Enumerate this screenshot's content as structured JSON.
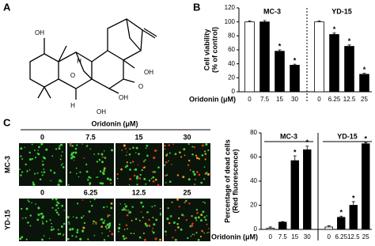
{
  "panels": {
    "a": "A",
    "b": "B",
    "c": "C"
  },
  "structure": {
    "atom_labels": [
      "OH",
      "O",
      "H",
      "OH",
      "O",
      "H",
      "OH",
      "OH"
    ]
  },
  "microscopy": {
    "header": "Oridonin (μM)",
    "rows": [
      {
        "name": "MC-3",
        "columns": [
          "0",
          "7.5",
          "15",
          "30"
        ]
      },
      {
        "name": "YD-15",
        "columns": [
          "0",
          "6.25",
          "12.5",
          "25"
        ]
      }
    ]
  },
  "chart_data": [
    {
      "type": "bar",
      "ylabel": [
        "Cell viability",
        "(% of control)"
      ],
      "xlabel": "Oridonin (μM)",
      "ylim": [
        0,
        120
      ],
      "yticks": [
        0,
        20,
        40,
        60,
        80,
        100,
        120
      ],
      "separator_style": "dashed",
      "groups": [
        {
          "name": "MC-3",
          "categories": [
            "0",
            "7.5",
            "15",
            "30"
          ],
          "values": [
            100,
            100,
            58,
            38
          ],
          "errors": [
            1.5,
            2,
            2,
            1.5
          ],
          "colors": [
            "#ffffff",
            "#000000",
            "#000000",
            "#000000"
          ],
          "significance": [
            null,
            null,
            "*",
            "*"
          ]
        },
        {
          "name": "YD-15",
          "categories": [
            "0",
            "6.25",
            "12.5",
            "25"
          ],
          "values": [
            100,
            82,
            65,
            25
          ],
          "errors": [
            1.5,
            2,
            2,
            1.5
          ],
          "colors": [
            "#ffffff",
            "#000000",
            "#000000",
            "#000000"
          ],
          "significance": [
            null,
            "*",
            "*",
            "*"
          ]
        }
      ]
    },
    {
      "type": "bar",
      "ylabel": [
        "Percentage of dead cells",
        "(Red fluorescence)"
      ],
      "xlabel": "Oridonin (μM)",
      "ylim": [
        0,
        80
      ],
      "yticks": [
        0,
        20,
        40,
        60,
        80
      ],
      "separator_style": "solid",
      "groups": [
        {
          "name": "MC-3",
          "categories": [
            "0",
            "7.5",
            "15",
            "30"
          ],
          "values": [
            1,
            6,
            57,
            66
          ],
          "errors": [
            1,
            0.5,
            4,
            3
          ],
          "colors": [
            "#ffffff",
            "#000000",
            "#000000",
            "#000000"
          ],
          "significance": [
            null,
            null,
            "*",
            "*"
          ]
        },
        {
          "name": "YD-15",
          "categories": [
            "0",
            "6.25",
            "12.5",
            "25"
          ],
          "values": [
            2,
            10,
            20,
            71
          ],
          "errors": [
            1,
            1,
            3,
            1
          ],
          "colors": [
            "#ffffff",
            "#000000",
            "#000000",
            "#000000"
          ],
          "significance": [
            null,
            "*",
            "*",
            "*"
          ]
        }
      ]
    }
  ]
}
